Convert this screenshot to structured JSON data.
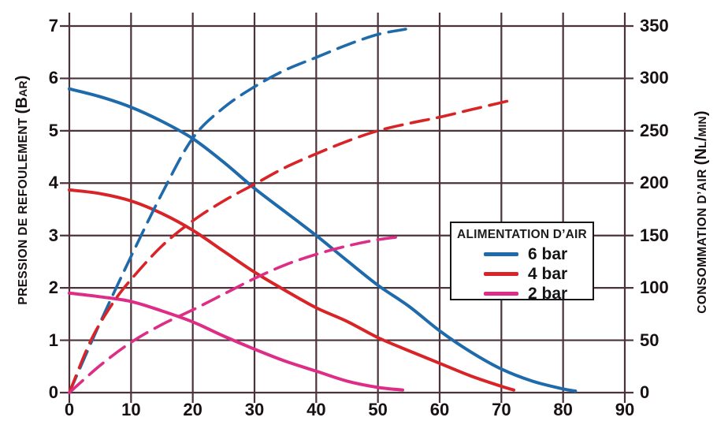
{
  "chart_data": {
    "type": "line",
    "grid": true,
    "colors": {
      "grid": "#4a3339",
      "text": "#181114",
      "blue": "#1f6aab",
      "red": "#d92427",
      "pink": "#dd2d87"
    },
    "x_axis": {
      "min": 0,
      "max": 90,
      "ticks": [
        0,
        10,
        20,
        30,
        40,
        50,
        60,
        70,
        80,
        90
      ]
    },
    "left_axis": {
      "title": "PRESSION DE REFOULEMENT",
      "unit": "(Bar)",
      "min": 0,
      "max": 7,
      "ticks": [
        0,
        1,
        2,
        3,
        4,
        5,
        6,
        7
      ]
    },
    "right_axis": {
      "title": "CONSOMMATION D’AIR",
      "unit": "(Nl/min)",
      "min": 0,
      "max": 350,
      "ticks": [
        0,
        50,
        100,
        150,
        200,
        250,
        300,
        350
      ]
    },
    "legend": {
      "title": "ALIMENTATION D’AIR",
      "items": [
        {
          "label": "6 bar",
          "color": "#1f6aab"
        },
        {
          "label": "4 bar",
          "color": "#d92427"
        },
        {
          "label": "2 bar",
          "color": "#dd2d87"
        }
      ]
    },
    "series": [
      {
        "name": "pression 6 bar",
        "axis": "left",
        "style": "solid",
        "color": "#1f6aab",
        "points": [
          [
            0,
            5.8
          ],
          [
            5,
            5.65
          ],
          [
            10,
            5.45
          ],
          [
            15,
            5.18
          ],
          [
            20,
            4.85
          ],
          [
            25,
            4.4
          ],
          [
            30,
            3.9
          ],
          [
            35,
            3.45
          ],
          [
            40,
            3.0
          ],
          [
            45,
            2.52
          ],
          [
            50,
            2.05
          ],
          [
            55,
            1.65
          ],
          [
            60,
            1.18
          ],
          [
            65,
            0.78
          ],
          [
            70,
            0.45
          ],
          [
            75,
            0.22
          ],
          [
            80,
            0.07
          ],
          [
            82,
            0.03
          ]
        ]
      },
      {
        "name": "pression 4 bar",
        "axis": "left",
        "style": "solid",
        "color": "#d92427",
        "points": [
          [
            0,
            3.87
          ],
          [
            5,
            3.8
          ],
          [
            10,
            3.66
          ],
          [
            15,
            3.42
          ],
          [
            20,
            3.1
          ],
          [
            25,
            2.7
          ],
          [
            30,
            2.3
          ],
          [
            35,
            1.95
          ],
          [
            40,
            1.62
          ],
          [
            45,
            1.36
          ],
          [
            50,
            1.05
          ],
          [
            55,
            0.8
          ],
          [
            60,
            0.56
          ],
          [
            65,
            0.32
          ],
          [
            70,
            0.12
          ],
          [
            72,
            0.05
          ]
        ]
      },
      {
        "name": "pression 2 bar",
        "axis": "left",
        "style": "solid",
        "color": "#dd2d87",
        "points": [
          [
            0,
            1.9
          ],
          [
            5,
            1.83
          ],
          [
            10,
            1.74
          ],
          [
            15,
            1.56
          ],
          [
            20,
            1.35
          ],
          [
            25,
            1.08
          ],
          [
            30,
            0.83
          ],
          [
            35,
            0.6
          ],
          [
            40,
            0.41
          ],
          [
            45,
            0.22
          ],
          [
            50,
            0.1
          ],
          [
            54,
            0.05
          ]
        ]
      },
      {
        "name": "consommation 6 bar",
        "axis": "right",
        "style": "dashed",
        "color": "#1f6aab",
        "points": [
          [
            0,
            0
          ],
          [
            5,
            67
          ],
          [
            10,
            130
          ],
          [
            15,
            190
          ],
          [
            20,
            243
          ],
          [
            25,
            272
          ],
          [
            30,
            292
          ],
          [
            35,
            308
          ],
          [
            40,
            320
          ],
          [
            45,
            332
          ],
          [
            50,
            342
          ],
          [
            54.5,
            347
          ]
        ]
      },
      {
        "name": "consommation 4 bar",
        "axis": "right",
        "style": "dashed",
        "color": "#d92427",
        "points": [
          [
            0,
            0
          ],
          [
            3.5,
            50
          ],
          [
            7,
            85
          ],
          [
            10,
            108
          ],
          [
            15,
            140
          ],
          [
            20,
            164
          ],
          [
            25,
            183
          ],
          [
            30,
            199
          ],
          [
            35,
            215
          ],
          [
            40,
            228
          ],
          [
            45,
            240
          ],
          [
            50,
            250
          ],
          [
            55,
            257
          ],
          [
            60,
            263
          ],
          [
            65,
            270
          ],
          [
            71.5,
            279
          ]
        ]
      },
      {
        "name": "consommation 2 bar",
        "axis": "right",
        "style": "dashed",
        "color": "#dd2d87",
        "points": [
          [
            0,
            0
          ],
          [
            5,
            26
          ],
          [
            10,
            48
          ],
          [
            15,
            65
          ],
          [
            20,
            79
          ],
          [
            25,
            94
          ],
          [
            30,
            109
          ],
          [
            35,
            122
          ],
          [
            40,
            132
          ],
          [
            45,
            140
          ],
          [
            50,
            146
          ],
          [
            54,
            149
          ]
        ]
      }
    ]
  }
}
